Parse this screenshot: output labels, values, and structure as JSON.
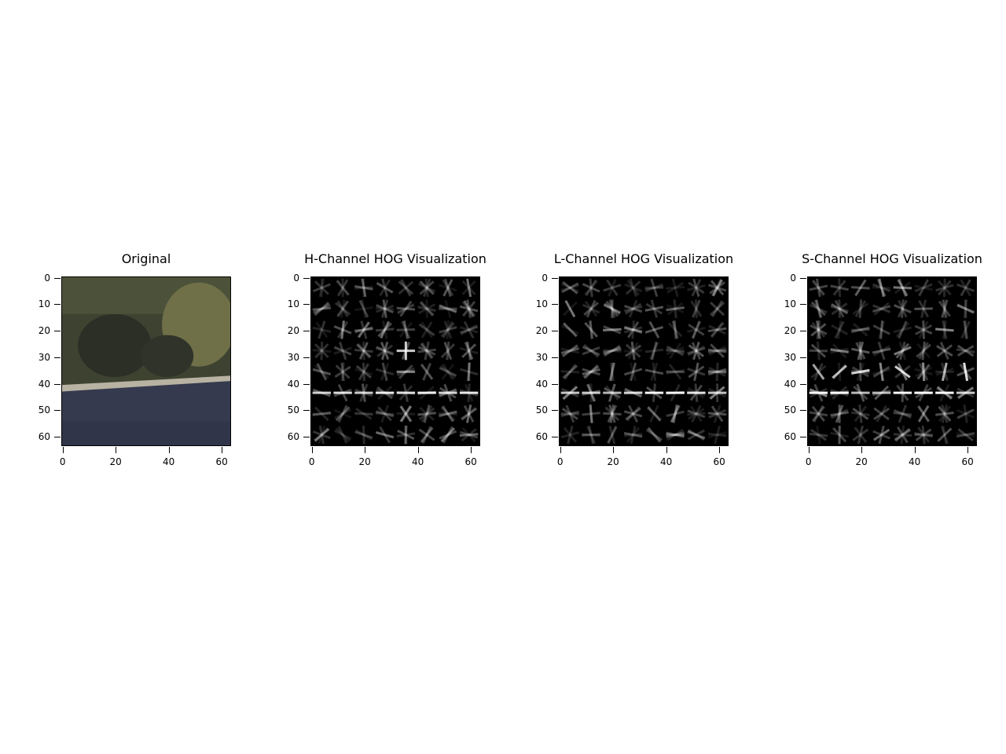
{
  "panels": [
    {
      "id": "original",
      "title": "Original",
      "kind": "photo"
    },
    {
      "id": "h-channel",
      "title": "H-Channel HOG Visualization",
      "kind": "hog"
    },
    {
      "id": "l-channel",
      "title": "L-Channel HOG Visualization",
      "kind": "hog"
    },
    {
      "id": "s-channel",
      "title": "S-Channel HOG Visualization",
      "kind": "hog"
    }
  ],
  "axes": {
    "x_ticks": [
      "0",
      "20",
      "40",
      "60"
    ],
    "y_ticks": [
      "0",
      "10",
      "20",
      "30",
      "40",
      "50",
      "60"
    ],
    "image_size": [
      64,
      64
    ]
  },
  "colors": {
    "hog_background": "#000000",
    "hog_stroke": "#ffffff",
    "foliage": "#3e4331",
    "foliage_light": "#6f7048",
    "road": "#353a4f",
    "curb": "#b8b2a2"
  }
}
